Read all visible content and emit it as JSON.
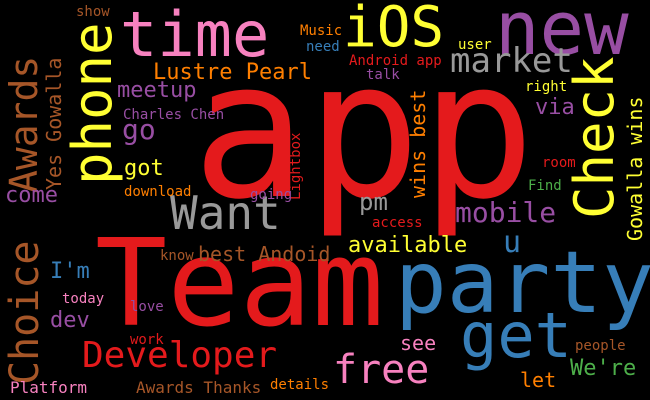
{
  "colors": {
    "background": "#000000",
    "red": "#e41a1c",
    "blue": "#377eb8",
    "green": "#4daf4a",
    "purple": "#984ea3",
    "orange": "#ff7f00",
    "yellow": "#ffff33",
    "brown": "#a65628",
    "pink": "#f781bf",
    "gray": "#999999"
  },
  "words": [
    {
      "text": "app",
      "color": "#e41a1c",
      "vertical": false
    },
    {
      "text": "Team",
      "color": "#e41a1c",
      "vertical": false
    },
    {
      "text": "party",
      "color": "#377eb8",
      "vertical": false
    },
    {
      "text": "time",
      "color": "#f781bf",
      "vertical": false
    },
    {
      "text": "new",
      "color": "#984ea3",
      "vertical": false
    },
    {
      "text": "iOS",
      "color": "#ffff33",
      "vertical": false
    },
    {
      "text": "phone",
      "color": "#ffff33",
      "vertical": true
    },
    {
      "text": "Check",
      "color": "#ffff33",
      "vertical": true
    },
    {
      "text": "Choice",
      "color": "#a65628",
      "vertical": true
    },
    {
      "text": "Awards",
      "color": "#a65628",
      "vertical": true
    },
    {
      "text": "get",
      "color": "#377eb8",
      "vertical": false
    },
    {
      "text": "Want",
      "color": "#999999",
      "vertical": false
    },
    {
      "text": "Developer",
      "color": "#e41a1c",
      "vertical": false
    },
    {
      "text": "free",
      "color": "#f781bf",
      "vertical": false
    },
    {
      "text": "market",
      "color": "#999999",
      "vertical": false
    },
    {
      "text": "mobile",
      "color": "#984ea3",
      "vertical": false
    },
    {
      "text": "Lustre Pearl",
      "color": "#ff7f00",
      "vertical": false
    },
    {
      "text": "go",
      "color": "#984ea3",
      "vertical": false
    },
    {
      "text": "meetup",
      "color": "#984ea3",
      "vertical": false
    },
    {
      "text": "available",
      "color": "#ffff33",
      "vertical": false
    },
    {
      "text": "best Andoid",
      "color": "#a65628",
      "vertical": false
    },
    {
      "text": "Gowalla wins",
      "color": "#ffff33",
      "vertical": true
    },
    {
      "text": "wins best",
      "color": "#ff7f00",
      "vertical": true
    },
    {
      "text": "Yes Gowalla",
      "color": "#a65628",
      "vertical": true
    },
    {
      "text": "u",
      "color": "#377eb8",
      "vertical": false
    },
    {
      "text": "pm",
      "color": "#999999",
      "vertical": false
    },
    {
      "text": "got",
      "color": "#ffff33",
      "vertical": false
    },
    {
      "text": "come",
      "color": "#984ea3",
      "vertical": false
    },
    {
      "text": "via",
      "color": "#984ea3",
      "vertical": false
    },
    {
      "text": "I'm",
      "color": "#377eb8",
      "vertical": false
    },
    {
      "text": "dev",
      "color": "#984ea3",
      "vertical": false
    },
    {
      "text": "see",
      "color": "#f781bf",
      "vertical": false
    },
    {
      "text": "let",
      "color": "#ff7f00",
      "vertical": false
    },
    {
      "text": "We're",
      "color": "#4daf4a",
      "vertical": false
    },
    {
      "text": "Platform",
      "color": "#f781bf",
      "vertical": false
    },
    {
      "text": "Awards Thanks",
      "color": "#a65628",
      "vertical": false
    },
    {
      "text": "Charles Chen",
      "color": "#984ea3",
      "vertical": false
    },
    {
      "text": "Android app",
      "color": "#e41a1c",
      "vertical": false
    },
    {
      "text": "Music",
      "color": "#ff7f00",
      "vertical": false
    },
    {
      "text": "need",
      "color": "#377eb8",
      "vertical": false
    },
    {
      "text": "talk",
      "color": "#984ea3",
      "vertical": false
    },
    {
      "text": "user",
      "color": "#ffff33",
      "vertical": false
    },
    {
      "text": "right",
      "color": "#ffff33",
      "vertical": false
    },
    {
      "text": "show",
      "color": "#a65628",
      "vertical": false
    },
    {
      "text": "Lightbox",
      "color": "#e41a1c",
      "vertical": true
    },
    {
      "text": "download",
      "color": "#ff7f00",
      "vertical": false
    },
    {
      "text": "going",
      "color": "#984ea3",
      "vertical": false
    },
    {
      "text": "access",
      "color": "#e41a1c",
      "vertical": false
    },
    {
      "text": "know",
      "color": "#a65628",
      "vertical": false
    },
    {
      "text": "room",
      "color": "#e41a1c",
      "vertical": false
    },
    {
      "text": "Find",
      "color": "#4daf4a",
      "vertical": false
    },
    {
      "text": "today",
      "color": "#f781bf",
      "vertical": false
    },
    {
      "text": "love",
      "color": "#984ea3",
      "vertical": false
    },
    {
      "text": "work",
      "color": "#e41a1c",
      "vertical": false
    },
    {
      "text": "details",
      "color": "#ff7f00",
      "vertical": false
    },
    {
      "text": "people",
      "color": "#a65628",
      "vertical": false
    }
  ]
}
